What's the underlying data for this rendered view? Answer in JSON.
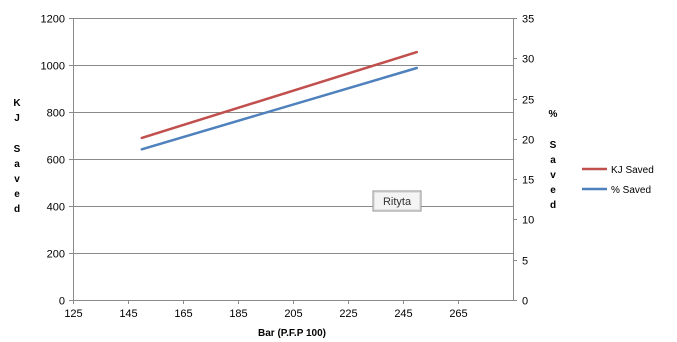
{
  "chart_data": {
    "type": "line",
    "title": "",
    "xlabel": "Bar (P.F.P 100)",
    "ylabel": "KJ Saved",
    "y2label": "% Saved",
    "xlim": [
      125,
      285
    ],
    "ylim": [
      0,
      1200
    ],
    "y2lim": [
      0,
      35
    ],
    "x_ticks": [
      125,
      145,
      165,
      185,
      205,
      225,
      245,
      265
    ],
    "y_ticks": [
      0,
      200,
      400,
      600,
      800,
      1000,
      1200
    ],
    "y2_ticks": [
      0,
      5,
      10,
      15,
      20,
      25,
      30,
      35
    ],
    "grid": true,
    "legend_position": "right",
    "annotation": "Rityta",
    "series": [
      {
        "name": "KJ Saved",
        "axis": "left",
        "color": "#c0504d",
        "x": [
          150,
          250
        ],
        "values": [
          690,
          1055
        ]
      },
      {
        "name": "% Saved",
        "axis": "right",
        "color": "#4f81bd",
        "x": [
          150,
          250
        ],
        "values": [
          18.7,
          28.8
        ]
      }
    ]
  }
}
